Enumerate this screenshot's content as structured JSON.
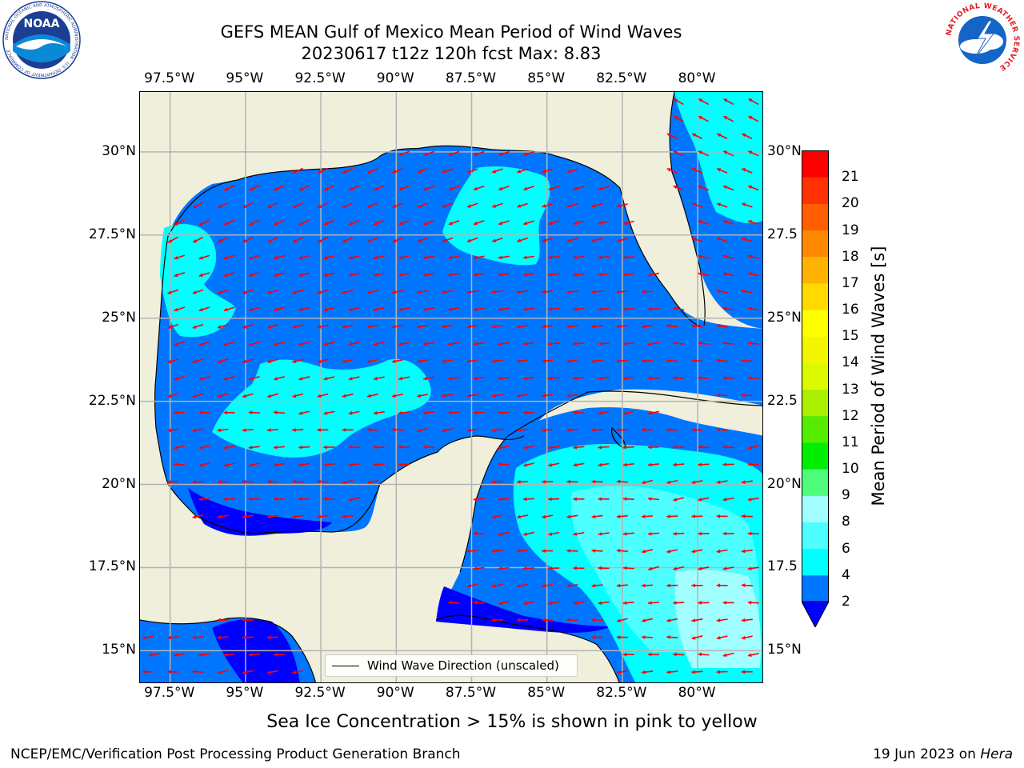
{
  "title": {
    "line1": "GEFS MEAN Gulf of Mexico Mean Period of Wind Waves",
    "line2": "20230617 t12z 120h fcst   Max: 8.83"
  },
  "axes": {
    "lon_labels": [
      "97.5°W",
      "95°W",
      "92.5°W",
      "90°W",
      "87.5°W",
      "85°W",
      "82.5°W",
      "80°W"
    ],
    "lat_labels_left": [
      "30°N",
      "27.5°N",
      "25°N",
      "22.5°N",
      "20°N",
      "17.5°N",
      "15°N"
    ],
    "lat_labels_right": [
      "30°N",
      "27.5",
      "25°N",
      "22.5",
      "20°N",
      "17.5",
      "15°N"
    ],
    "lon_values": [
      -97.5,
      -95,
      -92.5,
      -90,
      -87.5,
      -85,
      -82.5,
      -80
    ],
    "lat_values": [
      30,
      27.5,
      25,
      22.5,
      20,
      17.5,
      15
    ]
  },
  "legend": {
    "label": "Wind Wave Direction (unscaled)"
  },
  "colorbar": {
    "label": "Mean Period of Wind Waves [s]",
    "ticks": [
      "21",
      "20",
      "19",
      "18",
      "17",
      "16",
      "15",
      "14",
      "13",
      "12",
      "11",
      "10",
      "9",
      "8",
      "6",
      "4",
      "2"
    ],
    "levels": [
      2,
      4,
      6,
      8,
      9,
      10,
      11,
      12,
      13,
      14,
      15,
      16,
      17,
      18,
      19,
      20,
      21
    ],
    "colors": [
      "#0076ff",
      "#00ffff",
      "#4effff",
      "#a2ffff",
      "#4ffc7c",
      "#00ef00",
      "#55ec00",
      "#aaee00",
      "#ddf900",
      "#f2f700",
      "#ffff00",
      "#ffd900",
      "#ffb300",
      "#ff8800",
      "#ff5e00",
      "#ff3100",
      "#ff0000"
    ],
    "under_color": "#0000ff"
  },
  "colors": {
    "land": "#efefdc",
    "coast": "#000000",
    "grid": "#b4b4b4",
    "arrow": "#ff0000",
    "band_2_4": "#0076ff",
    "band_4_6": "#00ffff",
    "band_6_8": "#4effff",
    "band_8_9": "#a2ffff",
    "band_under": "#0000ff"
  },
  "footer": {
    "ice_note": "Sea Ice Concentration > 15% is shown in pink to yellow",
    "left": "NCEP/EMC/Verification Post Processing Product Generation Branch",
    "right_date": "19 Jun 2023 on ",
    "right_host": "Hera"
  },
  "logos": {
    "noaa_text": "NOAA",
    "noaa_ring": "NATIONAL OCEANIC AND ATMOSPHERIC ADMINISTRATION · U.S. DEPARTMENT OF COMMERCE",
    "nws_ring": "NATIONAL WEATHER SERVICE"
  }
}
